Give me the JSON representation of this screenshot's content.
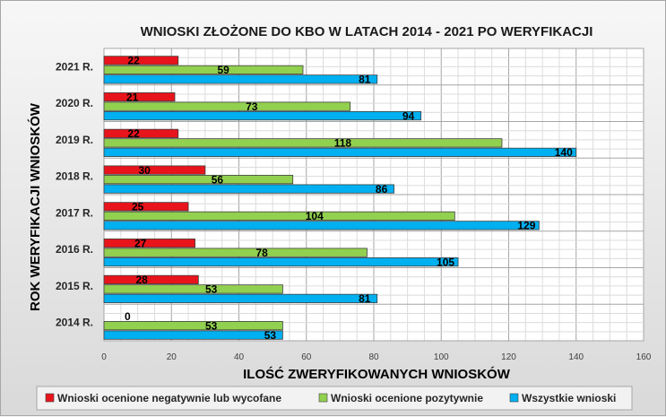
{
  "chart_data": {
    "type": "bar",
    "orientation": "horizontal",
    "title": "WNIOSKI ZŁOŻONE DO KBO W LATACH 2014 - 2021 PO WERYFIKACJI",
    "xlabel": "ILOŚĆ ZWERYFIKOWANYCH WNIOSKÓW",
    "ylabel": "ROK WERYFIKACJI WNIOSKÓW",
    "categories": [
      "2014 R.",
      "2015 R.",
      "2016 R.",
      "2017 R.",
      "2018 R.",
      "2019 R.",
      "2020 R.",
      "2021 R."
    ],
    "xlim": [
      0,
      160
    ],
    "xticks": [
      0,
      20,
      40,
      60,
      80,
      100,
      120,
      140,
      160
    ],
    "grid": true,
    "legend_position": "bottom",
    "series": [
      {
        "name": "Wnioski ocenione negatywnie lub wycofane",
        "color": "#e8141b",
        "values": [
          0,
          28,
          27,
          25,
          30,
          22,
          21,
          22
        ]
      },
      {
        "name": "Wnioski ocenione pozytywnie",
        "color": "#92d050",
        "values": [
          53,
          53,
          78,
          104,
          56,
          118,
          73,
          59
        ]
      },
      {
        "name": "Wszystkie wnioski",
        "color": "#00b0f0",
        "values": [
          53,
          81,
          105,
          129,
          86,
          140,
          94,
          81
        ]
      }
    ]
  }
}
